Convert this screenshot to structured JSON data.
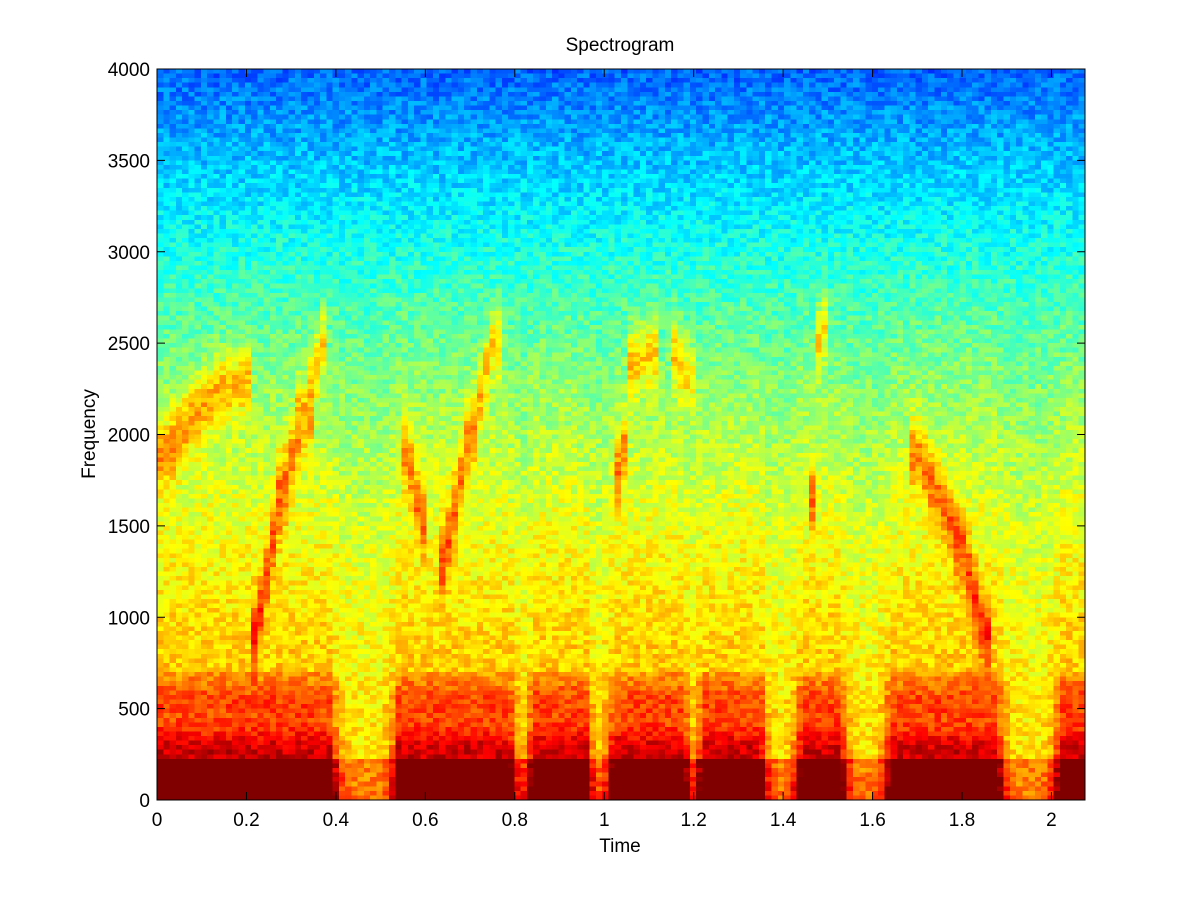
{
  "chart_data": {
    "type": "heatmap",
    "title": "Spectrogram",
    "xlabel": "Time",
    "ylabel": "Frequency",
    "xlim": [
      0,
      2.075
    ],
    "ylim": [
      0,
      4000
    ],
    "xticks": [
      0,
      0.2,
      0.4,
      0.6,
      0.8,
      1,
      1.2,
      1.4,
      1.6,
      1.8,
      2
    ],
    "xtick_labels": [
      "0",
      "0.2",
      "0.4",
      "0.6",
      "0.8",
      "1",
      "1.2",
      "1.4",
      "1.6",
      "1.8",
      "2"
    ],
    "yticks": [
      0,
      500,
      1000,
      1500,
      2000,
      2500,
      3000,
      3500,
      4000
    ],
    "ytick_labels": [
      "0",
      "500",
      "1000",
      "1500",
      "2000",
      "2500",
      "3000",
      "3500",
      "4000"
    ],
    "colormap": "jet",
    "grid": false,
    "grid_size": {
      "time_bins": 148,
      "frequency_bins": 160
    },
    "speech_segments_time": [
      [
        0.0,
        0.39
      ],
      [
        0.54,
        0.79
      ],
      [
        0.84,
        0.96
      ],
      [
        1.02,
        1.18
      ],
      [
        1.22,
        1.35
      ],
      [
        1.44,
        1.53
      ],
      [
        1.64,
        1.88
      ],
      [
        2.02,
        2.075
      ]
    ],
    "formant_tracks": [
      {
        "t": [
          0.02,
          0.08,
          0.14,
          0.2
        ],
        "f": [
          1900,
          2100,
          2250,
          2300
        ]
      },
      {
        "t": [
          0.22,
          0.28,
          0.33,
          0.37
        ],
        "f": [
          900,
          1700,
          2100,
          2500
        ]
      },
      {
        "t": [
          0.56,
          0.59
        ],
        "f": [
          1900,
          1550
        ]
      },
      {
        "t": [
          0.64,
          0.7,
          0.75
        ],
        "f": [
          1300,
          2000,
          2500
        ]
      },
      {
        "t": [
          1.04,
          1.06,
          1.1
        ],
        "f": [
          1800,
          2400,
          2450
        ]
      },
      {
        "t": [
          1.16,
          1.19
        ],
        "f": [
          2450,
          2300
        ]
      },
      {
        "t": [
          1.47,
          1.48
        ],
        "f": [
          1650,
          2600
        ]
      },
      {
        "t": [
          1.7,
          1.8,
          1.85
        ],
        "f": [
          1900,
          1400,
          900
        ]
      }
    ]
  }
}
